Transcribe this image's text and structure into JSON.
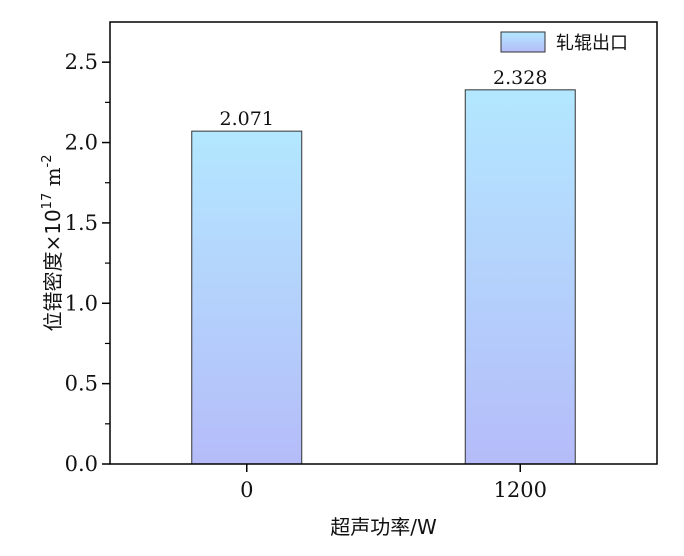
{
  "chart_data": {
    "type": "bar",
    "categories": [
      "0",
      "1200"
    ],
    "series": [
      {
        "name": "轧辊出口",
        "values": [
          2.071,
          2.328
        ]
      }
    ],
    "data_labels": [
      "2.071",
      "2.328"
    ],
    "xlabel": "超声功率/W",
    "ylabel": {
      "text": "位错密度×10",
      "exponent": "17",
      "unit_base": " m",
      "unit_exponent": "-2"
    },
    "ylim": [
      0,
      2.75
    ],
    "yticks": [
      0.0,
      0.5,
      1.0,
      1.5,
      2.0,
      2.5
    ],
    "ytick_labels": [
      "0.0",
      "0.5",
      "1.0",
      "1.5",
      "2.0",
      "2.5"
    ],
    "legend_position": "top-right",
    "grid": false,
    "colors": {
      "bar_top": "#b3e7ff",
      "bar_bottom": "#b5bcf9",
      "bar_edge": "#333333",
      "axis": "#000000"
    }
  }
}
